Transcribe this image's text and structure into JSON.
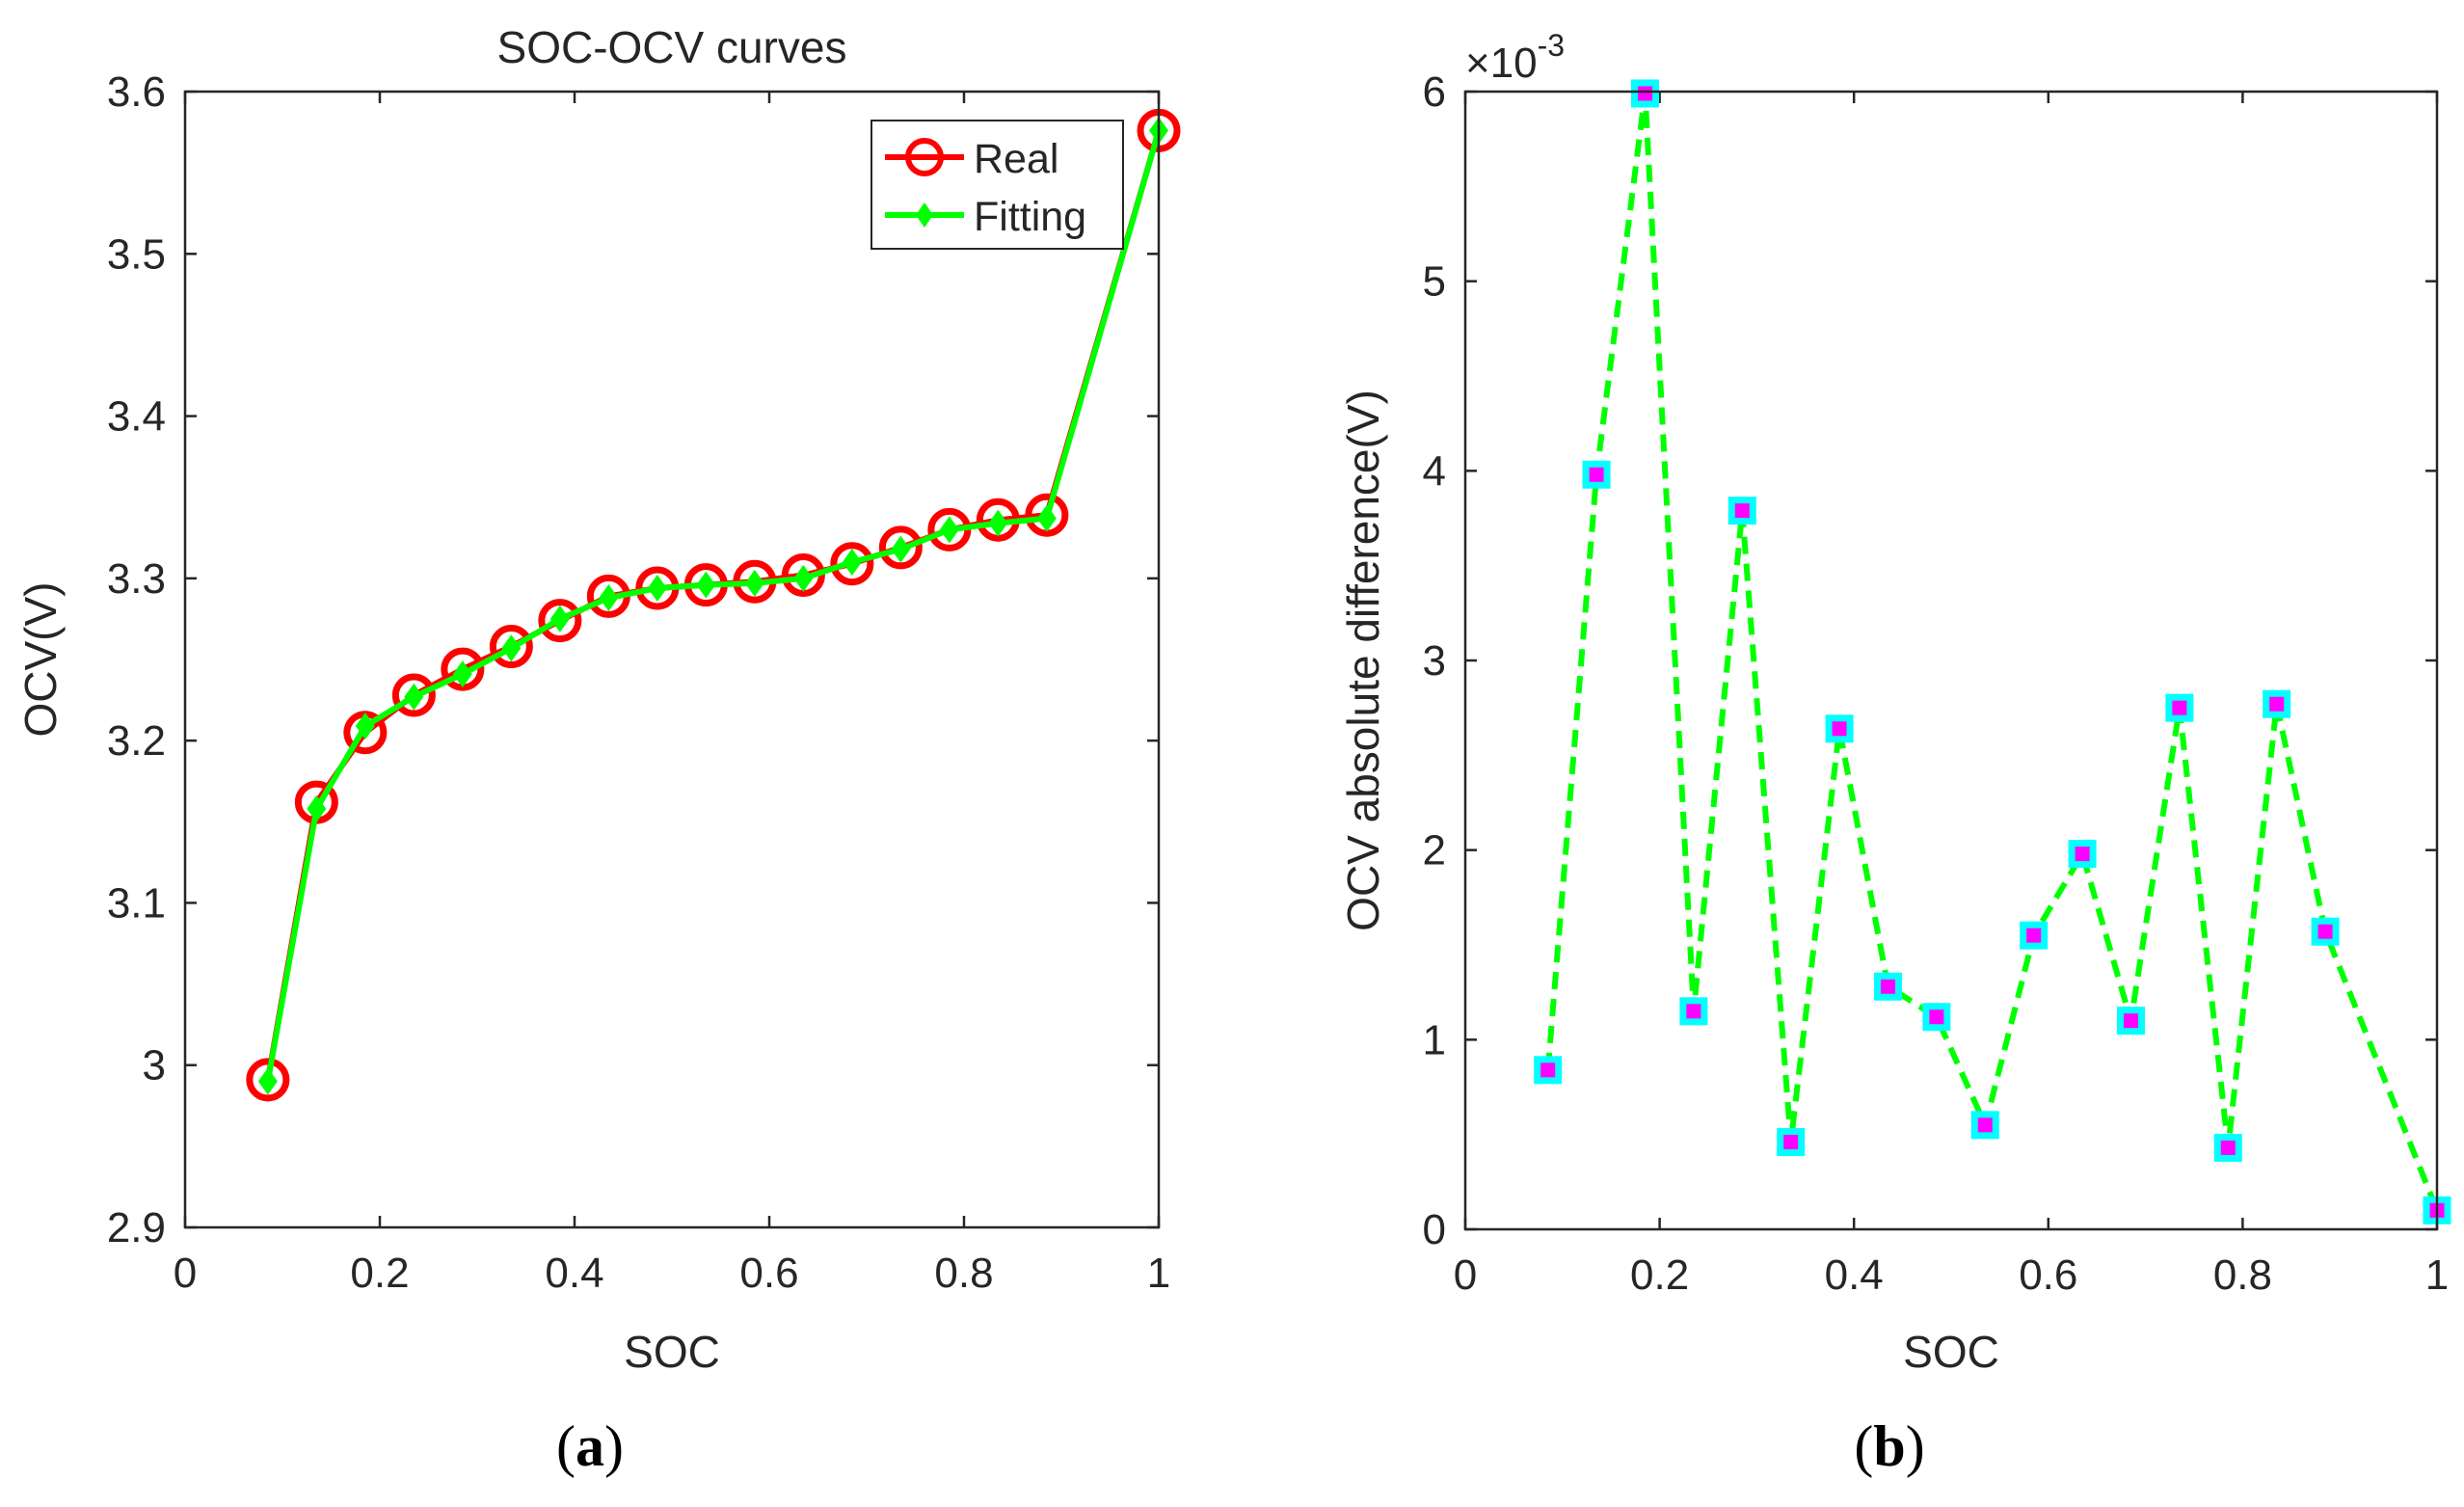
{
  "chart_data": [
    {
      "panel": "(a)",
      "panel_letter": "a",
      "type": "line",
      "title": "SOC-OCV curves",
      "xlabel": "SOC",
      "ylabel": "OCV(V)",
      "xlim": [
        0,
        1
      ],
      "ylim": [
        2.9,
        3.6
      ],
      "xticks": [
        0,
        0.2,
        0.4,
        0.6,
        0.8,
        1
      ],
      "xtick_labels": [
        "0",
        "0.2",
        "0.4",
        "0.6",
        "0.8",
        "1"
      ],
      "yticks": [
        2.9,
        3.0,
        3.1,
        3.2,
        3.3,
        3.4,
        3.5,
        3.6
      ],
      "ytick_labels": [
        "2.9",
        "3",
        "3.1",
        "3.2",
        "3.3",
        "3.4",
        "3.5",
        "3.6"
      ],
      "legend_position": "top-right",
      "grid": false,
      "x": [
        0.085,
        0.135,
        0.185,
        0.235,
        0.285,
        0.335,
        0.385,
        0.435,
        0.485,
        0.535,
        0.585,
        0.635,
        0.685,
        0.735,
        0.785,
        0.835,
        0.885,
        1.0
      ],
      "series": [
        {
          "name": "Real",
          "color": "#ff0000",
          "marker": "circle",
          "values": [
            2.991,
            3.162,
            3.205,
            3.228,
            3.244,
            3.258,
            3.274,
            3.289,
            3.294,
            3.296,
            3.298,
            3.302,
            3.309,
            3.319,
            3.33,
            3.336,
            3.339,
            3.576
          ]
        },
        {
          "name": "Fitting",
          "color": "#00ff00",
          "marker": "diamond",
          "values": [
            2.99,
            3.158,
            3.209,
            3.227,
            3.241,
            3.257,
            3.275,
            3.288,
            3.294,
            3.296,
            3.297,
            3.3,
            3.31,
            3.318,
            3.33,
            3.334,
            3.337,
            3.576
          ]
        }
      ]
    },
    {
      "panel": "(b)",
      "panel_letter": "b",
      "type": "line",
      "title": "",
      "xlabel": "SOC",
      "ylabel": "OCV absolute difference(V)",
      "exponent_base": "×10",
      "exponent_power": "-3",
      "xlim": [
        0,
        1
      ],
      "ylim": [
        0,
        6
      ],
      "xticks": [
        0,
        0.2,
        0.4,
        0.6,
        0.8,
        1
      ],
      "xtick_labels": [
        "0",
        "0.2",
        "0.4",
        "0.6",
        "0.8",
        "1"
      ],
      "yticks": [
        0,
        1,
        2,
        3,
        4,
        5,
        6
      ],
      "ytick_labels": [
        "0",
        "1",
        "2",
        "3",
        "4",
        "5",
        "6"
      ],
      "grid": false,
      "x": [
        0.085,
        0.135,
        0.185,
        0.235,
        0.285,
        0.335,
        0.385,
        0.435,
        0.485,
        0.535,
        0.585,
        0.635,
        0.685,
        0.735,
        0.785,
        0.835,
        0.885,
        1.0
      ],
      "series": [
        {
          "name": "OCV absolute difference",
          "color": "#00ff00",
          "line_style": "dashed",
          "marker": "square",
          "marker_edge_color": "#00ffff",
          "marker_face_color": "#ff00ff",
          "values": [
            0.84,
            3.98,
            5.99,
            1.15,
            3.79,
            0.46,
            2.64,
            1.28,
            1.12,
            0.55,
            1.55,
            1.98,
            1.1,
            2.75,
            0.43,
            2.77,
            1.57,
            0.1
          ]
        }
      ]
    }
  ]
}
